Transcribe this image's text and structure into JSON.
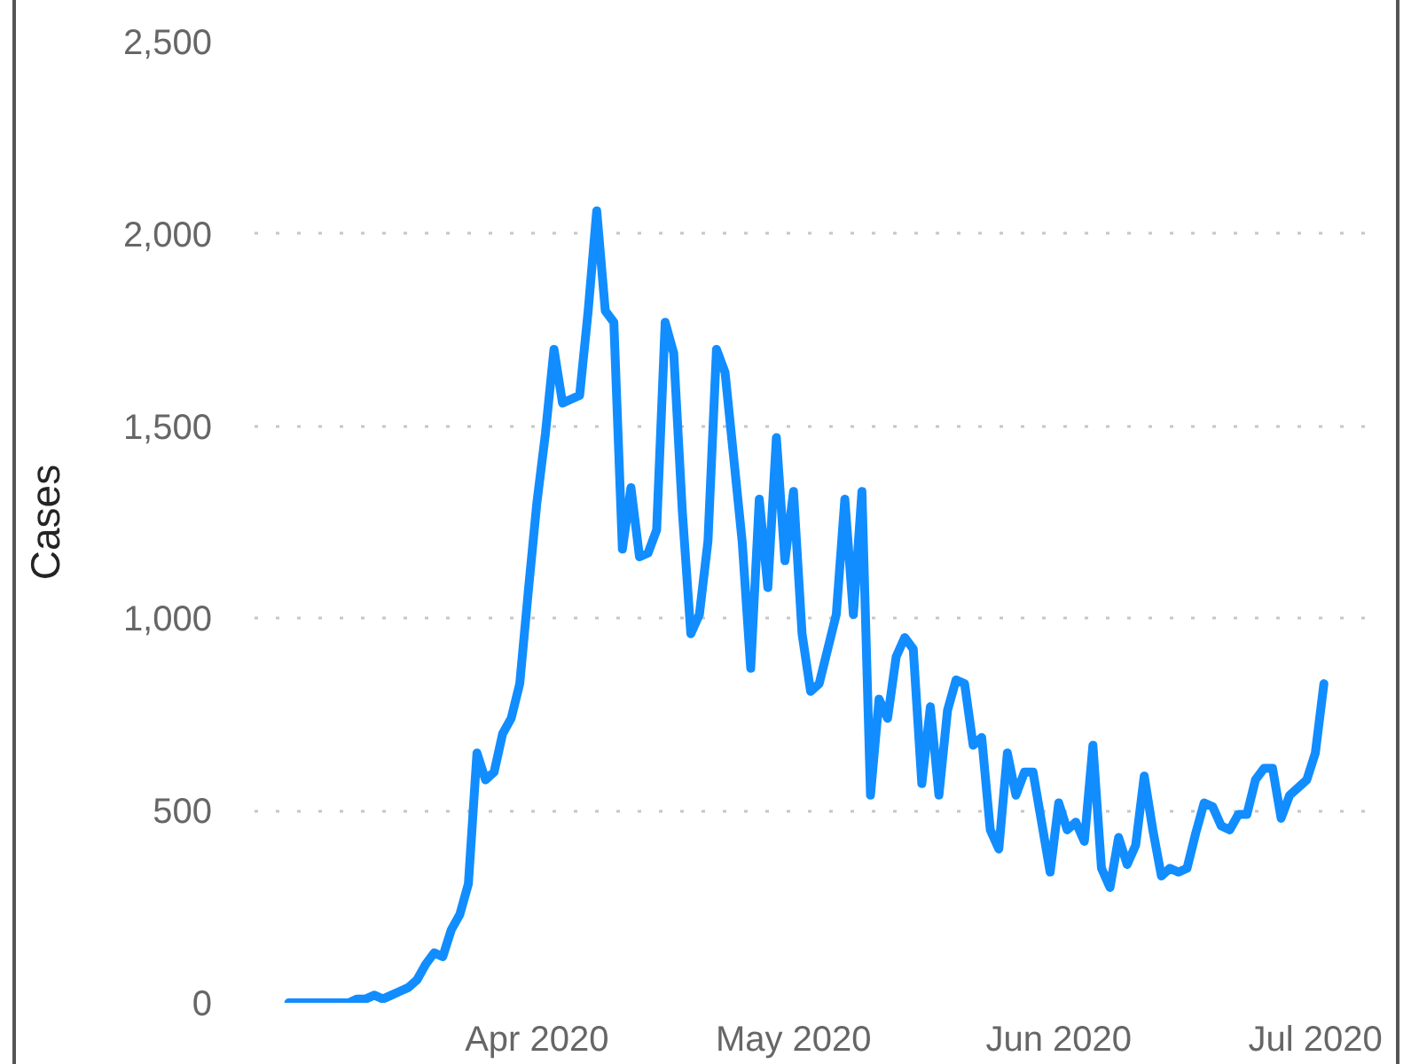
{
  "chart_data": {
    "type": "line",
    "ylabel": "Cases",
    "x": [
      "2020-03-03",
      "2020-03-06",
      "2020-03-09",
      "2020-03-10",
      "2020-03-11",
      "2020-03-12",
      "2020-03-13",
      "2020-03-14",
      "2020-03-15",
      "2020-03-16",
      "2020-03-17",
      "2020-03-18",
      "2020-03-19",
      "2020-03-20",
      "2020-03-21",
      "2020-03-22",
      "2020-03-23",
      "2020-03-24",
      "2020-03-25",
      "2020-03-26",
      "2020-03-27",
      "2020-03-28",
      "2020-03-29",
      "2020-03-30",
      "2020-03-31",
      "2020-04-01",
      "2020-04-02",
      "2020-04-03",
      "2020-04-04",
      "2020-04-05",
      "2020-04-06",
      "2020-04-07",
      "2020-04-08",
      "2020-04-09",
      "2020-04-10",
      "2020-04-11",
      "2020-04-12",
      "2020-04-13",
      "2020-04-14",
      "2020-04-15",
      "2020-04-16",
      "2020-04-17",
      "2020-04-18",
      "2020-04-19",
      "2020-04-20",
      "2020-04-21",
      "2020-04-22",
      "2020-04-23",
      "2020-04-24",
      "2020-04-25",
      "2020-04-26",
      "2020-04-27",
      "2020-04-28",
      "2020-04-29",
      "2020-04-30",
      "2020-05-01",
      "2020-05-02",
      "2020-05-03",
      "2020-05-04",
      "2020-05-05",
      "2020-05-06",
      "2020-05-07",
      "2020-05-08",
      "2020-05-09",
      "2020-05-10",
      "2020-05-11",
      "2020-05-12",
      "2020-05-13",
      "2020-05-14",
      "2020-05-15",
      "2020-05-16",
      "2020-05-17",
      "2020-05-18",
      "2020-05-19",
      "2020-05-20",
      "2020-05-21",
      "2020-05-22",
      "2020-05-23",
      "2020-05-24",
      "2020-05-25",
      "2020-05-26",
      "2020-05-27",
      "2020-05-28",
      "2020-05-29",
      "2020-05-30",
      "2020-05-31",
      "2020-06-01",
      "2020-06-02",
      "2020-06-03",
      "2020-06-04",
      "2020-06-05",
      "2020-06-06",
      "2020-06-07",
      "2020-06-08",
      "2020-06-09",
      "2020-06-10",
      "2020-06-11",
      "2020-06-12",
      "2020-06-13",
      "2020-06-14",
      "2020-06-15",
      "2020-06-16",
      "2020-06-17",
      "2020-06-18",
      "2020-06-19",
      "2020-06-20",
      "2020-06-21",
      "2020-06-22",
      "2020-06-23",
      "2020-06-24",
      "2020-06-25",
      "2020-06-26",
      "2020-06-27",
      "2020-06-28",
      "2020-06-29",
      "2020-06-30",
      "2020-07-01",
      "2020-07-02"
    ],
    "series": [
      {
        "color": "#118dff",
        "values": [
          0,
          0,
          0,
          0,
          10,
          10,
          20,
          10,
          20,
          30,
          40,
          60,
          100,
          130,
          120,
          190,
          230,
          310,
          650,
          580,
          600,
          700,
          740,
          830,
          1070,
          1300,
          1480,
          1700,
          1560,
          1570,
          1580,
          1800,
          2060,
          1800,
          1770,
          1180,
          1340,
          1160,
          1170,
          1230,
          1770,
          1690,
          1280,
          960,
          1010,
          1200,
          1700,
          1640,
          1420,
          1200,
          870,
          1310,
          1080,
          1470,
          1150,
          1330,
          960,
          810,
          830,
          920,
          1010,
          1310,
          1010,
          1330,
          540,
          790,
          740,
          900,
          950,
          920,
          570,
          770,
          540,
          760,
          840,
          830,
          670,
          690,
          450,
          400,
          650,
          540,
          600,
          600,
          470,
          340,
          520,
          450,
          470,
          420,
          670,
          350,
          300,
          430,
          360,
          410,
          590,
          450,
          330,
          350,
          340,
          350,
          440,
          520,
          510,
          460,
          450,
          490,
          490,
          580,
          610,
          610,
          480,
          540,
          560,
          580,
          650,
          830
        ]
      }
    ],
    "xlim": [
      "2020-02-28",
      "2020-07-07"
    ],
    "xticks": [
      {
        "value": "2020-04-01",
        "label": "Apr 2020"
      },
      {
        "value": "2020-05-01",
        "label": "May 2020"
      },
      {
        "value": "2020-06-01",
        "label": "Jun 2020"
      },
      {
        "value": "2020-07-01",
        "label": "Jul 2020"
      }
    ],
    "ylim": [
      0,
      2500
    ],
    "yticks": [
      0,
      500,
      {
        "value": 1000,
        "label": "1,000"
      },
      {
        "value": 1500,
        "label": "1,500"
      },
      {
        "value": 2000,
        "label": "2,000"
      },
      {
        "value": 2500,
        "label": "2,500"
      }
    ],
    "grid": "y"
  }
}
